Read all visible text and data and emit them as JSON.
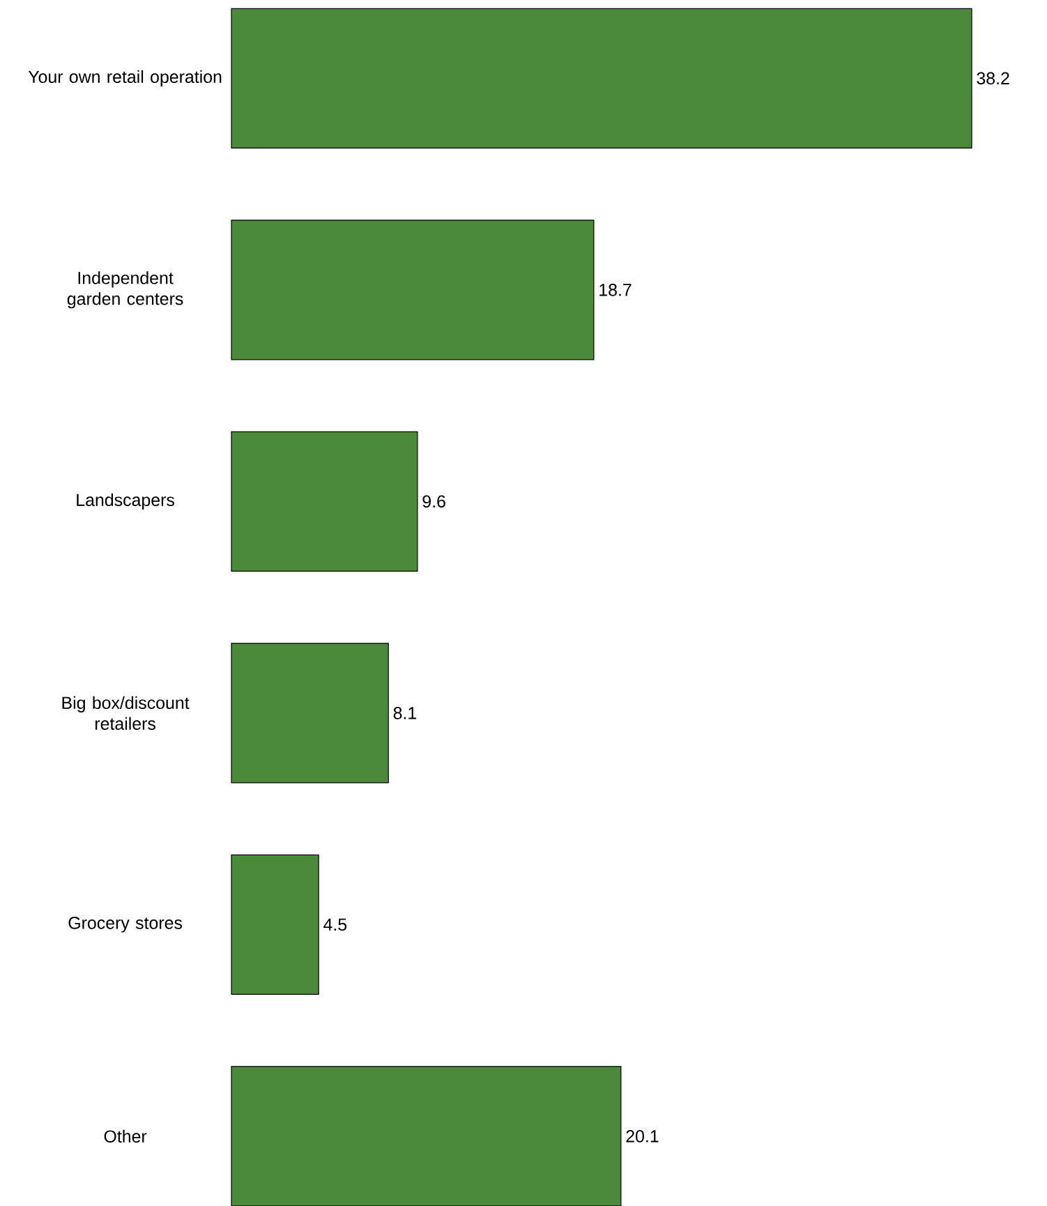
{
  "chart_data": {
    "type": "bar",
    "orientation": "horizontal",
    "categories": [
      "Your own retail operation",
      "Independent garden centers",
      "Landscapers",
      "Big box/discount retailers",
      "Grocery stores",
      "Other"
    ],
    "values": [
      38.2,
      18.7,
      9.6,
      8.1,
      4.5,
      20.1
    ],
    "color": "#4a8a3a",
    "data_labels": true
  }
}
